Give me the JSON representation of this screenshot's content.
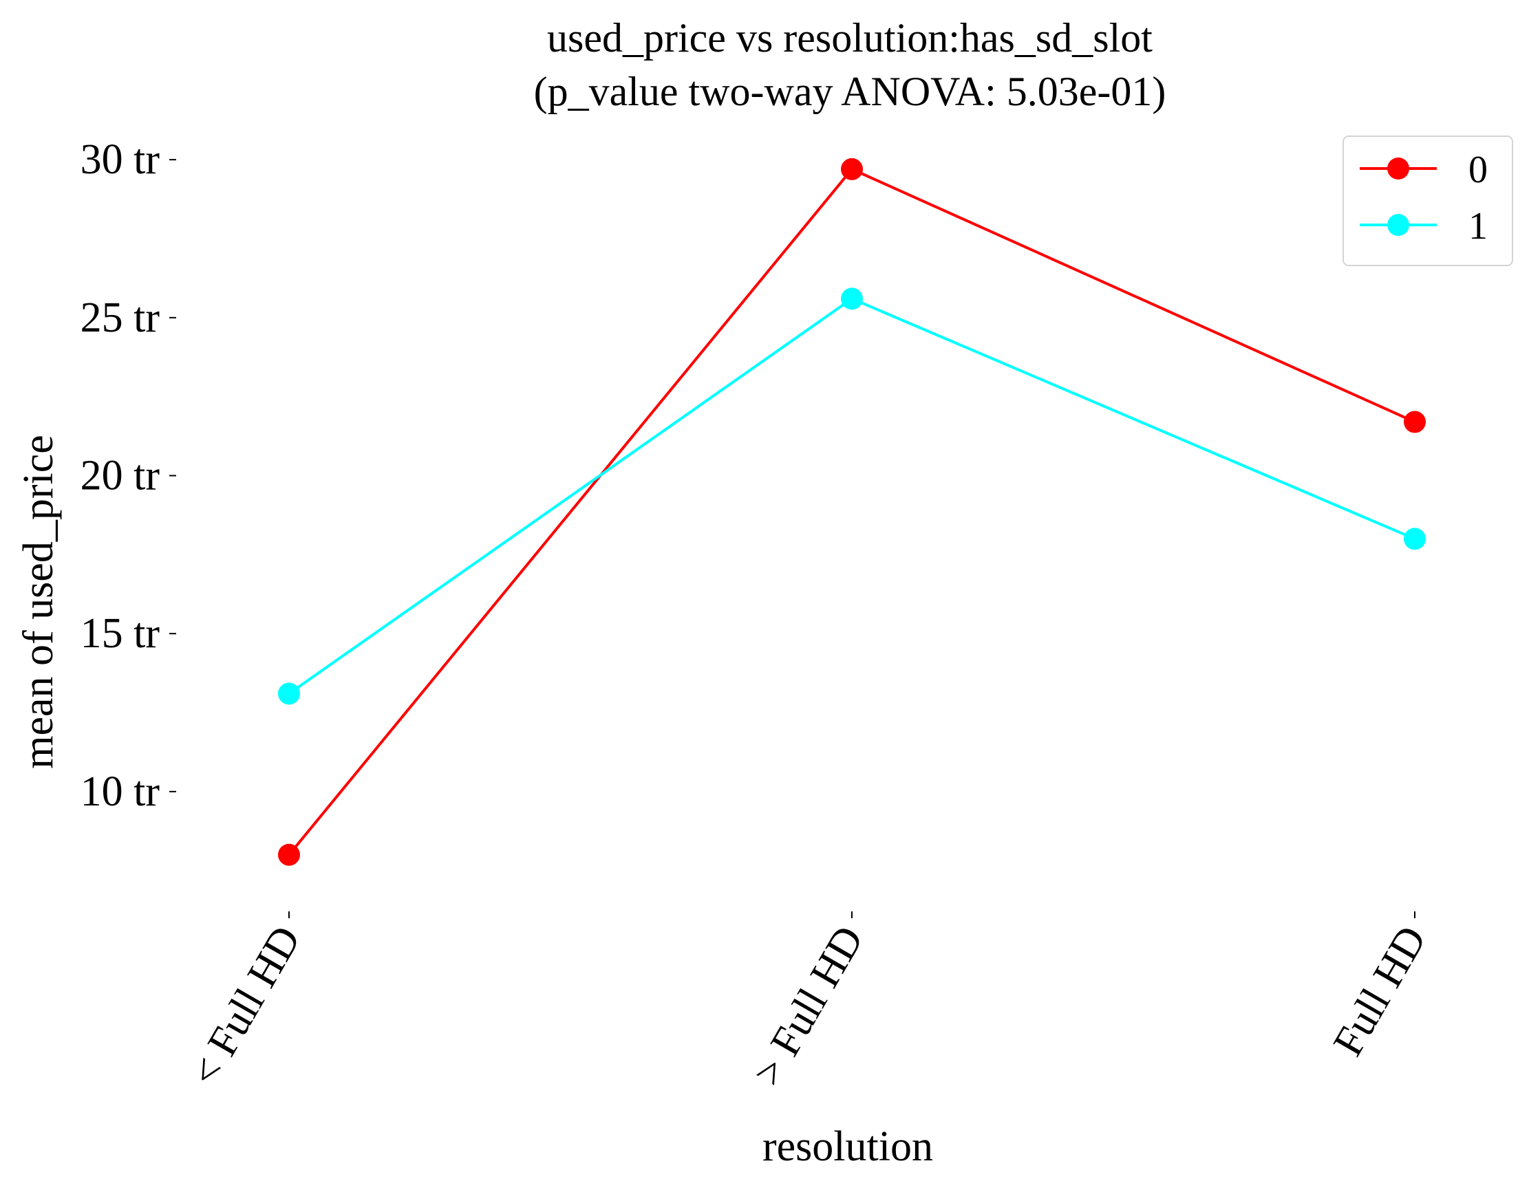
{
  "chart_data": {
    "type": "line",
    "title_line1": "used_price vs resolution:has_sd_slot",
    "title_line2": "(p_value two-way ANOVA: 5.03e-01)",
    "xlabel": "resolution",
    "ylabel": "mean of used_price",
    "categories": [
      "< Full HD",
      "> Full HD",
      "Full HD"
    ],
    "y_ticks": [
      {
        "value": 10,
        "label": "10 tr"
      },
      {
        "value": 15,
        "label": "15 tr"
      },
      {
        "value": 20,
        "label": "20 tr"
      },
      {
        "value": 25,
        "label": "25 tr"
      },
      {
        "value": 30,
        "label": "30 tr"
      }
    ],
    "ylim": [
      6.1,
      30.7
    ],
    "grid": false,
    "legend_position": "top-right",
    "series": [
      {
        "name": "0",
        "color": "#ff0000",
        "values": [
          8.0,
          29.7,
          21.7
        ]
      },
      {
        "name": "1",
        "color": "#00ffff",
        "values": [
          13.1,
          25.6,
          18.0
        ]
      }
    ]
  }
}
